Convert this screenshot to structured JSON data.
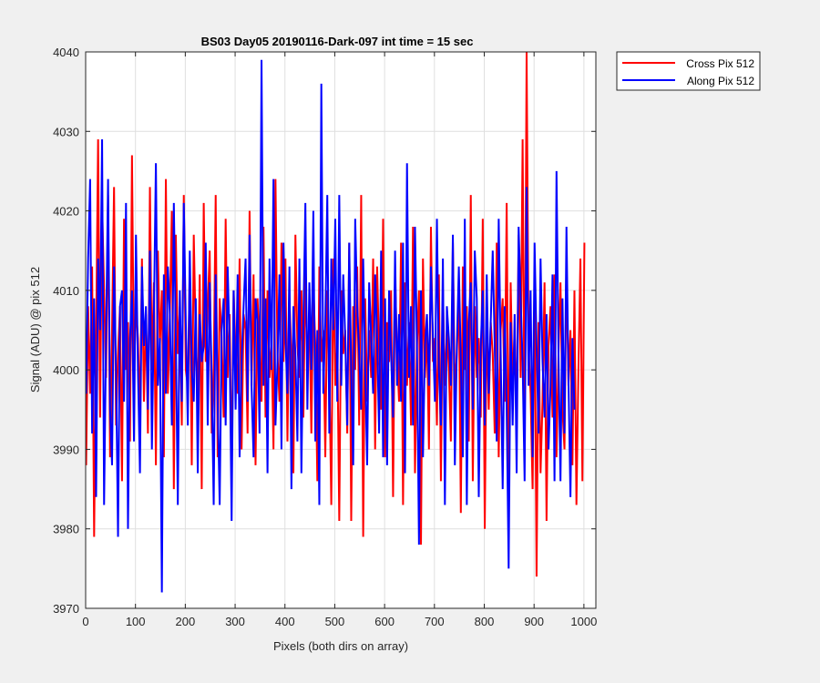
{
  "chart_data": {
    "type": "line",
    "title": "BS03 Day05 20190116-Dark-097 int time = 15 sec",
    "xlabel": "Pixels (both dirs on array)",
    "ylabel": "Signal (ADU) @ pix 512",
    "xlim": [
      0,
      1024
    ],
    "ylim": [
      3970,
      4040
    ],
    "xticks": [
      0,
      100,
      200,
      300,
      400,
      500,
      600,
      700,
      800,
      900,
      1000
    ],
    "yticks": [
      3970,
      3980,
      3990,
      4000,
      4010,
      4020,
      4030,
      4040
    ],
    "grid": true,
    "legend_position": "outside top-right",
    "x_note": "x runs 1..1024, one sample per pixel; the values arrays below are a dense sampled approximation (every 4th pixel) of noisy dark-frame signal around 4002 ADU",
    "series": [
      {
        "name": "Cross Pix 512",
        "color": "#ff0000",
        "x_start": 1,
        "x_step": 4,
        "values": [
          3988,
          4008,
          3997,
          4013,
          3979,
          4004,
          4029,
          3994,
          4021,
          4010,
          3999,
          4022,
          3989,
          4005,
          4023,
          3993,
          4002,
          4008,
          3986,
          4019,
          4000,
          4006,
          3991,
          4027,
          3999,
          4008,
          4004,
          3994,
          4014,
          3996,
          4007,
          3992,
          4023,
          4000,
          4011,
          3988,
          4015,
          4003,
          4010,
          3989,
          4024,
          3997,
          4007,
          4020,
          3985,
          4017,
          4002,
          4008,
          3993,
          4022,
          4000,
          3998,
          4013,
          3988,
          4017,
          4004,
          3996,
          4012,
          3985,
          4021,
          4001,
          4008,
          4015,
          3992,
          4000,
          4022,
          3989,
          4009,
          4004,
          3994,
          4019,
          3999,
          4007,
          3986,
          4010,
          4002,
          3997,
          4014,
          3990,
          4007,
          4005,
          3992,
          4020,
          3998,
          4012,
          3988,
          4009,
          4003,
          3996,
          4018,
          3994,
          4010,
          3999,
          4004,
          3990,
          4024,
          4002,
          3996,
          4016,
          4001,
          4014,
          3991,
          4009,
          4002,
          3987,
          4017,
          4003,
          3999,
          4010,
          3994,
          4013,
          4000,
          4007,
          3992,
          4011,
          4003,
          3986,
          4013,
          4001,
          4005,
          3989,
          4010,
          4000,
          3983,
          4014,
          3998,
          4004,
          3981,
          4010,
          4002,
          4005,
          3992,
          4016,
          3981,
          4008,
          4000,
          4013,
          3993,
          4022,
          3979,
          4009,
          3996,
          4005,
          3999,
          4014,
          3990,
          4013,
          4002,
          3995,
          4019,
          3989,
          4006,
          4001,
          4010,
          3984,
          4012,
          4002,
          3996,
          4016,
          3983,
          4011,
          3998,
          4006,
          3993,
          4018,
          3987,
          4003,
          4010,
          3978,
          4014,
          3999,
          4005,
          3990,
          4018,
          4001,
          4004,
          3993,
          4012,
          3986,
          4010,
          3998,
          4005,
          4000,
          3991,
          4016,
          3997,
          4002,
          4010,
          3982,
          4013,
          4000,
          4008,
          3991,
          4022,
          3986,
          4008,
          3999,
          4004,
          3994,
          4019,
          3980,
          4007,
          3995,
          4006,
          4002,
          3992,
          4016,
          3989,
          4005,
          4009,
          3996,
          4021,
          3985,
          4011,
          3998,
          4005,
          3994,
          4017,
          3999,
          4029,
          3990,
          4040,
          4003,
          3997,
          3985,
          4012,
          3974,
          4006,
          3987,
          3996,
          4011,
          3981,
          4003,
          4008,
          3994,
          4012,
          3989,
          4002,
          4011,
          3995,
          3990,
          4014,
          3998,
          4005,
          3988,
          4010,
          3983,
          4000,
          4014,
          3986,
          4016
        ]
      },
      {
        "name": "Along Pix 512",
        "color": "#0000ff",
        "x_start": 1,
        "x_step": 4,
        "values": [
          3997,
          4014,
          4024,
          3992,
          4009,
          3984,
          4014,
          4005,
          4029,
          3983,
          4004,
          4024,
          3995,
          3988,
          4013,
          4000,
          3979,
          4008,
          4010,
          3996,
          4021,
          3980,
          4004,
          4010,
          3991,
          4017,
          4000,
          3987,
          4013,
          4003,
          4008,
          3995,
          4015,
          3990,
          4007,
          4026,
          3998,
          4004,
          3972,
          4012,
          3997,
          4013,
          4007,
          3993,
          4021,
          4004,
          3983,
          4010,
          3996,
          4021,
          4006,
          3993,
          4015,
          4000,
          3996,
          4009,
          3987,
          4007,
          4001,
          4003,
          4016,
          3993,
          4011,
          3999,
          3983,
          4012,
          3996,
          3983,
          4005,
          4009,
          3993,
          4013,
          4003,
          3981,
          4010,
          3995,
          4012,
          3989,
          4001,
          4008,
          4014,
          3996,
          4017,
          3998,
          3989,
          4009,
          4006,
          3992,
          4039,
          3998,
          4009,
          3987,
          4014,
          4000,
          4024,
          3993,
          4001,
          4012,
          3990,
          4016,
          4004,
          3997,
          4013,
          3985,
          4008,
          4002,
          3991,
          4014,
          3987,
          4006,
          4021,
          3995,
          4011,
          4000,
          4020,
          3991,
          4005,
          3983,
          4036,
          3997,
          4006,
          4022,
          3992,
          4014,
          4005,
          4019,
          3996,
          4022,
          3998,
          4012,
          4004,
          3993,
          4016,
          4000,
          3988,
          4019,
          4008,
          4002,
          3995,
          4014,
          4000,
          3988,
          4011,
          4004,
          3997,
          4012,
          4004,
          3992,
          4015,
          3989,
          4009,
          3988,
          4010,
          4002,
          3994,
          4015,
          3998,
          4007,
          3996,
          4016,
          3987,
          4026,
          3999,
          4008,
          3993,
          4018,
          4003,
          3978,
          4010,
          3989,
          4003,
          4007,
          3998,
          4013,
          4004,
          3996,
          4019,
          4000,
          3993,
          4014,
          3983,
          4008,
          4004,
          3998,
          4017,
          3988,
          4003,
          4013,
          4001,
          3989,
          4019,
          3983,
          4006,
          4011,
          3995,
          4015,
          4009,
          3984,
          4003,
          4010,
          3993,
          4012,
          3997,
          4006,
          4015,
          4003,
          3991,
          4019,
          4002,
          3985,
          4008,
          3995,
          3975,
          4006,
          3993,
          4007,
          3987,
          4018,
          4009,
          4001,
          3986,
          4023,
          3998,
          4010,
          3989,
          4016,
          4003,
          3992,
          4014,
          4001,
          3994,
          4007,
          3990,
          3998,
          4012,
          3986,
          4025,
          4002,
          3986,
          4009,
          3992,
          4018,
          3999,
          3984,
          4004,
          3995
        ]
      }
    ]
  }
}
